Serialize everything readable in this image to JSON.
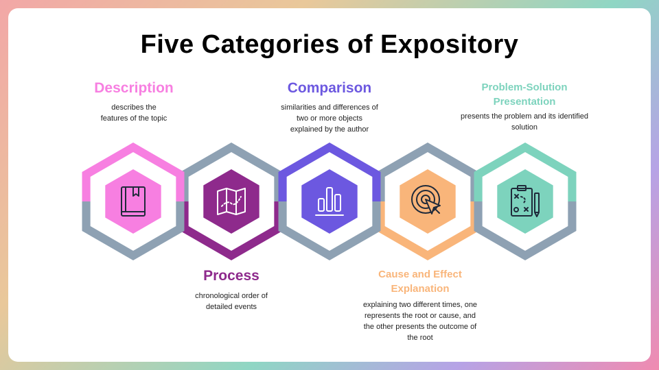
{
  "title": "Five Categories of Expository",
  "colors": {
    "gray": "#8ea1b3",
    "description": "#f77fe1",
    "process": "#8e2a8c",
    "comparison": "#6c58e0",
    "cause_effect": "#f9b57a",
    "problem_solution": "#7dd3bd",
    "icon_stroke": "#1f2a3a"
  },
  "categories": [
    {
      "key": "description",
      "label": "Description",
      "text": [
        "describes the",
        "features of the topic"
      ],
      "icon": "book-icon"
    },
    {
      "key": "process",
      "label": "Process",
      "text": [
        "chronological order of",
        "detailed events"
      ],
      "icon": "map-icon"
    },
    {
      "key": "comparison",
      "label": "Comparison",
      "text": [
        "similarities and differences of",
        "two or more objects",
        "explained by the author"
      ],
      "icon": "bar-chart-icon"
    },
    {
      "key": "cause_effect",
      "label": [
        "Cause and Effect",
        "Explanation"
      ],
      "text": [
        "explaining two different times, one",
        "represents the root or cause, and",
        "the other presents the outcome of",
        "the root"
      ],
      "icon": "target-icon"
    },
    {
      "key": "problem_solution",
      "label": [
        "Problem-Solution",
        "Presentation"
      ],
      "text": [
        "presents the problem and its identified",
        "solution"
      ],
      "icon": "strategy-board-icon"
    }
  ]
}
